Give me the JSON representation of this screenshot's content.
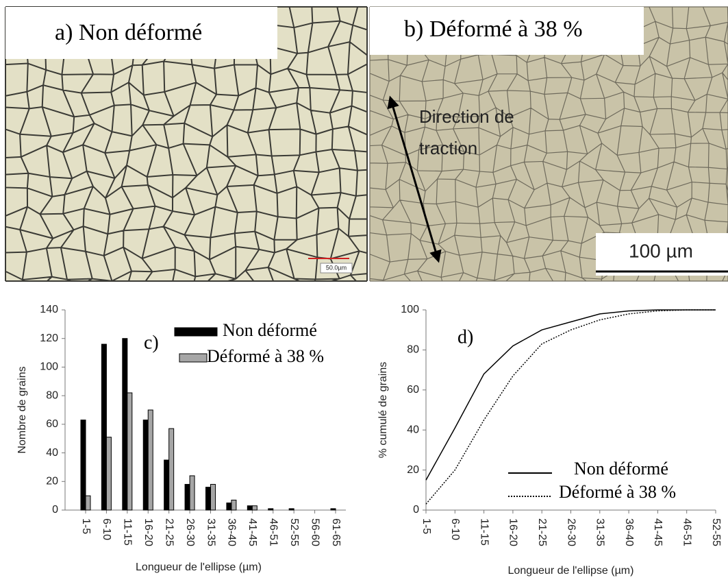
{
  "panels": {
    "label_a": "a) Non déformé",
    "label_b": "b) Déformé à 38 %",
    "direction": [
      "Direction de",
      "traction"
    ],
    "scale_bar": "100 µm",
    "scale_bar_small": "50.0µm"
  },
  "chart_data": [
    {
      "type": "bar",
      "annotation": "c)",
      "y_label": "Nombre de grains",
      "x_label": "Longueur de l'ellipse (µm)",
      "categories": [
        "1-5",
        "6-10",
        "11-15",
        "16-20",
        "21-25",
        "26-30",
        "31-35",
        "36-40",
        "41-45",
        "46-51",
        "52-55",
        "56-60",
        "61-65"
      ],
      "series": [
        {
          "name": "Non déformé",
          "color": "#000000",
          "values": [
            63,
            116,
            120,
            63,
            35,
            18,
            16,
            5,
            3,
            1,
            1,
            0,
            1
          ]
        },
        {
          "name": "Déformé à 38 %",
          "color": "#a6a6a6",
          "values": [
            10,
            51,
            82,
            70,
            57,
            24,
            18,
            7,
            3,
            0,
            0,
            0,
            0
          ]
        }
      ],
      "ylim": [
        0,
        140
      ],
      "yticks": [
        0,
        20,
        40,
        60,
        80,
        100,
        120,
        140
      ]
    },
    {
      "type": "line",
      "annotation": "d)",
      "y_label": "% cumulé de grains",
      "x_label": "Longueur de l'ellipse (µm)",
      "categories": [
        "1-5",
        "6-10",
        "11-15",
        "16-20",
        "21-25",
        "26-30",
        "31-35",
        "36-40",
        "41-45",
        "46-51",
        "52-55"
      ],
      "series": [
        {
          "name": "Non déformé",
          "color": "#000000",
          "dash": "none",
          "values": [
            15,
            41,
            68,
            82,
            90,
            94,
            98,
            99.5,
            100,
            100,
            100
          ]
        },
        {
          "name": "Déformé à 38 %",
          "color": "#000000",
          "dash": "2 2",
          "values": [
            3,
            20,
            45,
            67,
            83,
            90,
            95,
            98,
            99.5,
            100,
            100
          ]
        }
      ],
      "ylim": [
        0,
        100
      ],
      "yticks": [
        0,
        20,
        40,
        60,
        80,
        100
      ]
    }
  ]
}
